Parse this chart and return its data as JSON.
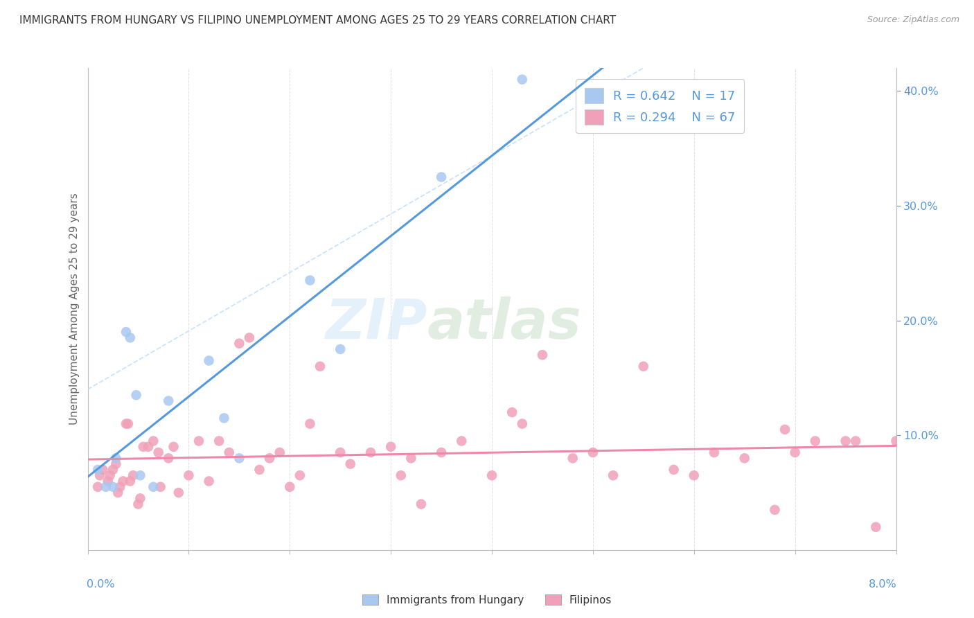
{
  "title": "IMMIGRANTS FROM HUNGARY VS FILIPINO UNEMPLOYMENT AMONG AGES 25 TO 29 YEARS CORRELATION CHART",
  "source": "Source: ZipAtlas.com",
  "ylabel": "Unemployment Among Ages 25 to 29 years",
  "legend_blue_R": "0.642",
  "legend_blue_N": "17",
  "legend_pink_R": "0.294",
  "legend_pink_N": "67",
  "watermark_zip": "ZIP",
  "watermark_atlas": "atlas",
  "blue_color": "#a8c8f0",
  "pink_color": "#f0a0b8",
  "blue_line_color": "#5599dd",
  "pink_line_color": "#ee88aa",
  "dashed_line_color": "#bbddff",
  "title_color": "#333333",
  "axis_label_color": "#666666",
  "tick_color": "#5599dd",
  "background": "#ffffff",
  "grid_color": "#dddddd",
  "xmin": 0.0,
  "xmax": 8.0,
  "ymin": 0.0,
  "ymax": 42.0,
  "hungary_x": [
    0.1,
    0.18,
    0.25,
    0.28,
    0.38,
    0.42,
    0.48,
    0.52,
    0.65,
    0.8,
    1.2,
    1.35,
    1.5,
    2.2,
    2.5,
    3.5,
    4.3
  ],
  "hungary_y": [
    7.0,
    5.5,
    5.5,
    8.0,
    19.0,
    18.5,
    13.5,
    6.5,
    5.5,
    13.0,
    16.5,
    11.5,
    8.0,
    23.5,
    17.5,
    32.5,
    41.0
  ],
  "filipino_x": [
    0.1,
    0.12,
    0.15,
    0.2,
    0.22,
    0.25,
    0.28,
    0.3,
    0.32,
    0.35,
    0.38,
    0.4,
    0.42,
    0.45,
    0.5,
    0.52,
    0.55,
    0.6,
    0.65,
    0.7,
    0.72,
    0.8,
    0.85,
    0.9,
    1.0,
    1.1,
    1.2,
    1.3,
    1.4,
    1.5,
    1.6,
    1.7,
    1.8,
    1.9,
    2.0,
    2.1,
    2.2,
    2.3,
    2.5,
    2.6,
    2.8,
    3.0,
    3.1,
    3.2,
    3.3,
    3.5,
    3.7,
    4.0,
    4.2,
    4.3,
    4.5,
    4.8,
    5.0,
    5.2,
    5.5,
    5.8,
    6.0,
    6.2,
    6.5,
    6.8,
    7.0,
    7.5,
    7.8,
    8.0,
    7.2,
    7.6,
    6.9
  ],
  "filipino_y": [
    5.5,
    6.5,
    7.0,
    6.0,
    6.5,
    7.0,
    7.5,
    5.0,
    5.5,
    6.0,
    11.0,
    11.0,
    6.0,
    6.5,
    4.0,
    4.5,
    9.0,
    9.0,
    9.5,
    8.5,
    5.5,
    8.0,
    9.0,
    5.0,
    6.5,
    9.5,
    6.0,
    9.5,
    8.5,
    18.0,
    18.5,
    7.0,
    8.0,
    8.5,
    5.5,
    6.5,
    11.0,
    16.0,
    8.5,
    7.5,
    8.5,
    9.0,
    6.5,
    8.0,
    4.0,
    8.5,
    9.5,
    6.5,
    12.0,
    11.0,
    17.0,
    8.0,
    8.5,
    6.5,
    16.0,
    7.0,
    6.5,
    8.5,
    8.0,
    3.5,
    8.5,
    9.5,
    2.0,
    9.5,
    9.5,
    9.5,
    10.5
  ]
}
